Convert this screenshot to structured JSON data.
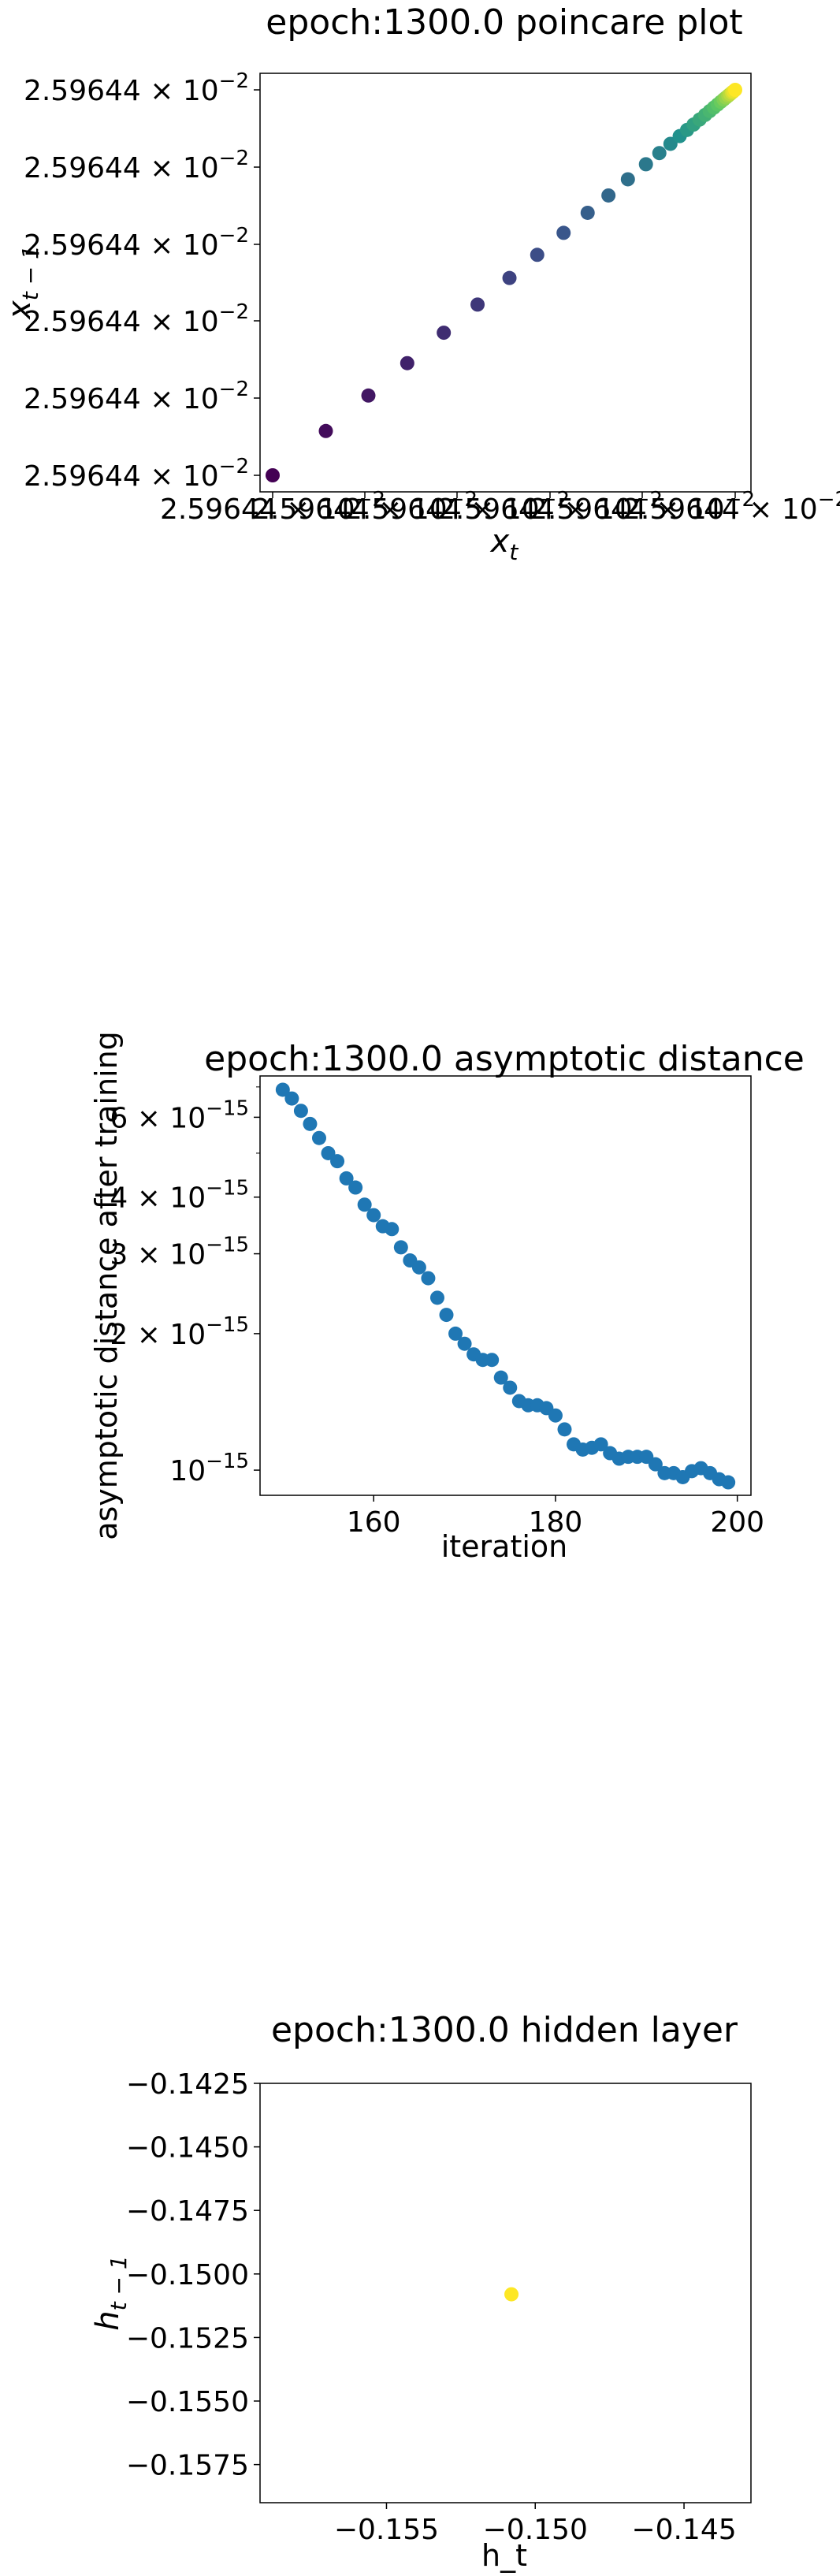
{
  "chart_data": [
    {
      "type": "scatter",
      "title": "epoch:1300.0 poincare plot",
      "xlabel": "x_t",
      "ylabel": "x_{t-1}",
      "colormap": "viridis",
      "xlim": [
        0,
        1
      ],
      "ylim": [
        0,
        1
      ],
      "x_tick_labels": [
        "2.59644 × 10^−2",
        "2.59644 × 10^−2",
        "2.59644 × 10^−2",
        "2.59644 × 10^−2",
        "2.59644 × 10^−2",
        "2.59644 × 10^−2"
      ],
      "y_tick_labels": [
        "2.59644 × 10^−2",
        "2.59644 × 10^−2",
        "2.59644 × 10^−2",
        "2.59644 × 10^−2",
        "2.59644 × 10^−2",
        "2.59644 × 10^−2"
      ],
      "note_scale": "normalized position within the unresolvable range around 2.59644e-2",
      "points": [
        [
          0.0,
          0.0
        ],
        [
          0.115,
          0.115
        ],
        [
          0.207,
          0.207
        ],
        [
          0.291,
          0.291
        ],
        [
          0.37,
          0.37
        ],
        [
          0.443,
          0.443
        ],
        [
          0.512,
          0.512
        ],
        [
          0.572,
          0.572
        ],
        [
          0.629,
          0.629
        ],
        [
          0.681,
          0.681
        ],
        [
          0.726,
          0.726
        ],
        [
          0.768,
          0.768
        ],
        [
          0.807,
          0.807
        ],
        [
          0.836,
          0.836
        ],
        [
          0.86,
          0.86
        ],
        [
          0.88,
          0.88
        ],
        [
          0.896,
          0.896
        ],
        [
          0.91,
          0.91
        ],
        [
          0.923,
          0.923
        ],
        [
          0.935,
          0.935
        ],
        [
          0.945,
          0.945
        ],
        [
          0.954,
          0.954
        ],
        [
          0.962,
          0.962
        ],
        [
          0.969,
          0.969
        ],
        [
          0.975,
          0.975
        ],
        [
          0.98,
          0.98
        ],
        [
          0.985,
          0.985
        ],
        [
          0.989,
          0.989
        ],
        [
          0.993,
          0.993
        ],
        [
          0.996,
          0.996
        ],
        [
          1.0,
          1.0
        ]
      ]
    },
    {
      "type": "scatter",
      "title": "epoch:1300.0 asymptotic distance",
      "xlabel": "iteration",
      "ylabel": "asymptotic distance after training",
      "yscale": "log",
      "xlim": [
        147.5,
        201.5
      ],
      "ylim": [
        8.8e-16,
        7.4e-15
      ],
      "x_ticks": [
        160,
        180,
        200
      ],
      "y_ticks": [
        1e-15,
        2e-15,
        3e-15,
        4e-15,
        6e-15
      ],
      "y_tick_labels": [
        "10^−15",
        "2 × 10^−15",
        "3 × 10^−15",
        "4 × 10^−15",
        "6 × 10^−15"
      ],
      "color": "#1f77b4",
      "x": [
        150,
        151,
        152,
        153,
        154,
        155,
        156,
        157,
        158,
        159,
        160,
        161,
        162,
        163,
        164,
        165,
        166,
        167,
        168,
        169,
        170,
        171,
        172,
        173,
        174,
        175,
        176,
        177,
        178,
        179,
        180,
        181,
        182,
        183,
        184,
        185,
        186,
        187,
        188,
        189,
        190,
        191,
        192,
        193,
        194,
        195,
        196,
        197,
        198,
        199
      ],
      "y": [
        6.9e-15,
        6.6e-15,
        6.2e-15,
        5.8e-15,
        5.4e-15,
        5e-15,
        4.8e-15,
        4.4e-15,
        4.2e-15,
        3.85e-15,
        3.65e-15,
        3.45e-15,
        3.4e-15,
        3.1e-15,
        2.9e-15,
        2.8e-15,
        2.65e-15,
        2.4e-15,
        2.2e-15,
        2e-15,
        1.9e-15,
        1.8e-15,
        1.75e-15,
        1.75e-15,
        1.6e-15,
        1.52e-15,
        1.42e-15,
        1.39e-15,
        1.39e-15,
        1.37e-15,
        1.32e-15,
        1.23e-15,
        1.14e-15,
        1.11e-15,
        1.12e-15,
        1.14e-15,
        1.09e-15,
        1.06e-15,
        1.07e-15,
        1.07e-15,
        1.07e-15,
        1.03e-15,
        9.85e-16,
        9.85e-16,
        9.65e-16,
        9.95e-16,
        1.01e-15,
        9.85e-16,
        9.55e-16,
        9.4e-16
      ]
    },
    {
      "type": "scatter",
      "title": "epoch:1300.0 hidden layer",
      "xlabel": "h_t",
      "ylabel": "h_{t-1}",
      "xlim": [
        -0.15925,
        -0.14275
      ],
      "ylim": [
        -0.159,
        -0.1425
      ],
      "x_ticks": [
        -0.155,
        -0.15,
        -0.145
      ],
      "x_tick_labels": [
        "−0.155",
        "−0.150",
        "−0.145"
      ],
      "y_ticks": [
        -0.1575,
        -0.155,
        -0.1525,
        -0.15,
        -0.1475,
        -0.145,
        -0.1425
      ],
      "y_tick_labels": [
        "−0.1575",
        "−0.1550",
        "−0.1525",
        "−0.1500",
        "−0.1475",
        "−0.1450",
        "−0.1425"
      ],
      "color": "#fde725",
      "points": [
        [
          -0.1508,
          -0.1508
        ]
      ]
    }
  ]
}
